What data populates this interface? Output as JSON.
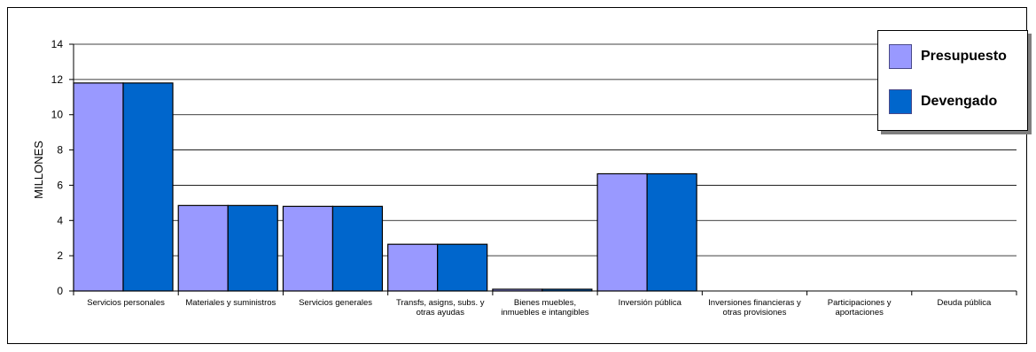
{
  "chart_data": {
    "type": "bar",
    "ylabel": "MILLONES",
    "ylim": [
      0,
      14
    ],
    "yticks": [
      "0",
      "2",
      "4",
      "6",
      "8",
      "10",
      "12",
      "14"
    ],
    "grid": true,
    "legend_position": "top-right",
    "categories": [
      [
        "Servicios personales"
      ],
      [
        "Materiales y suministros"
      ],
      [
        "Servicios generales"
      ],
      [
        "Transfs, asigns, subs. y",
        "otras ayudas"
      ],
      [
        "Bienes muebles,",
        "inmuebles e intangibles"
      ],
      [
        "Inversión pública"
      ],
      [
        "Inversiones financieras y",
        "otras provisiones"
      ],
      [
        "Participaciones y",
        "aportaciones"
      ],
      [
        "Deuda pública"
      ]
    ],
    "series": [
      {
        "name": "Presupuesto",
        "color": "#9999ff",
        "values": [
          11.8,
          4.85,
          4.8,
          2.65,
          0.1,
          6.65,
          0,
          0,
          0
        ]
      },
      {
        "name": "Devengado",
        "color": "#0066cc",
        "values": [
          11.8,
          4.85,
          4.8,
          2.65,
          0.1,
          6.65,
          0,
          0,
          0
        ]
      }
    ]
  }
}
